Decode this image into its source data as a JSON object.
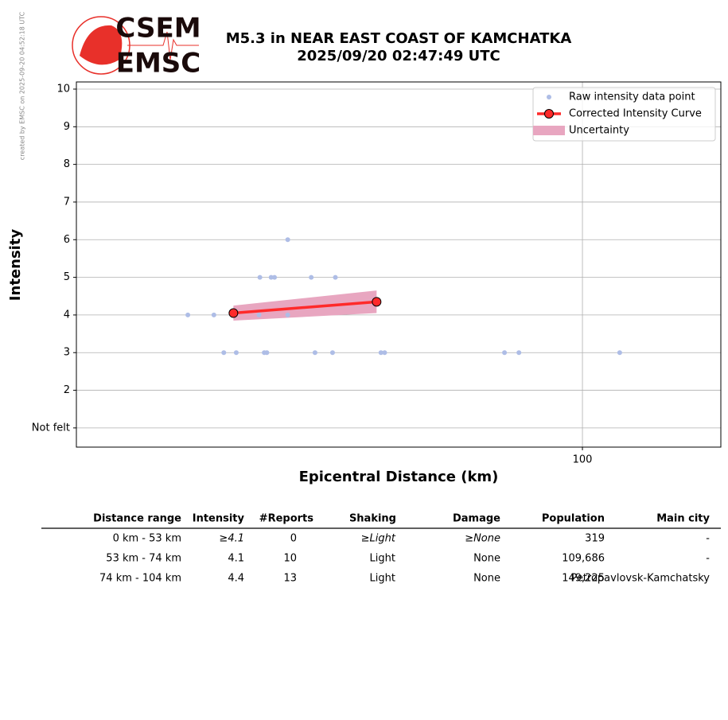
{
  "watermark": "created by EMSC on 2025-09-20 04:52:18 UTC",
  "logo": {
    "top": "CSEM",
    "bottom": "EMSC"
  },
  "chart_data": {
    "type": "scatter",
    "title": "M5.3 in NEAR EAST COAST OF KAMCHATKA",
    "subtitle": "2025/09/20 02:47:49 UTC",
    "xlabel": "Epicentral Distance (km)",
    "ylabel": "Intensity",
    "xscale": "log",
    "xlim": [
      23.1,
      149.3
    ],
    "xticks": [
      100
    ],
    "ylim": [
      0.49,
      10.19
    ],
    "yticks": [
      {
        "value": 1,
        "label": "Not felt"
      },
      2,
      3,
      4,
      5,
      6,
      7,
      8,
      9,
      10
    ],
    "grid": true,
    "legend": "upper right",
    "series": [
      {
        "name": "Raw intensity data point",
        "color": "#aebde6",
        "x": [
          31.9,
          34.4,
          35.4,
          36.7,
          39.3,
          39.2,
          39.8,
          40.1,
          40.6,
          41.0,
          42.6,
          42.6,
          45.6,
          46.1,
          48.5,
          48.9,
          55.8,
          56.4,
          79.8,
          83.2,
          111.4
        ],
        "values": [
          4,
          4,
          3,
          3,
          5,
          4,
          3,
          3,
          5,
          5,
          6,
          4,
          5,
          3,
          3,
          5,
          3,
          3,
          3,
          3,
          3
        ]
      },
      {
        "name": "Corrected Intensity Curve",
        "color": "#ff2a2a",
        "x": [
          36.4,
          55.1
        ],
        "values": [
          4.05,
          4.35
        ]
      },
      {
        "name": "Uncertainty",
        "color": "#e8a6c0",
        "x": [
          36.4,
          55.1
        ],
        "lower": [
          3.85,
          4.05
        ],
        "upper": [
          4.25,
          4.65
        ]
      }
    ]
  },
  "table": {
    "header": [
      "Distance range",
      "Intensity",
      "#Reports",
      "Shaking",
      "Damage",
      "Population",
      "Main city"
    ],
    "rows": [
      [
        "0 km -   53 km",
        "≥4.1",
        "0",
        "≥Light",
        "≥None",
        "319",
        "-"
      ],
      [
        "53 km -   74 km",
        "4.1",
        "10",
        "Light",
        "None",
        "109,686",
        "-"
      ],
      [
        "74 km -  104 km",
        "4.4",
        "13",
        "Light",
        "None",
        "149,225",
        "Petropavlovsk-Kamchatsky"
      ]
    ]
  }
}
